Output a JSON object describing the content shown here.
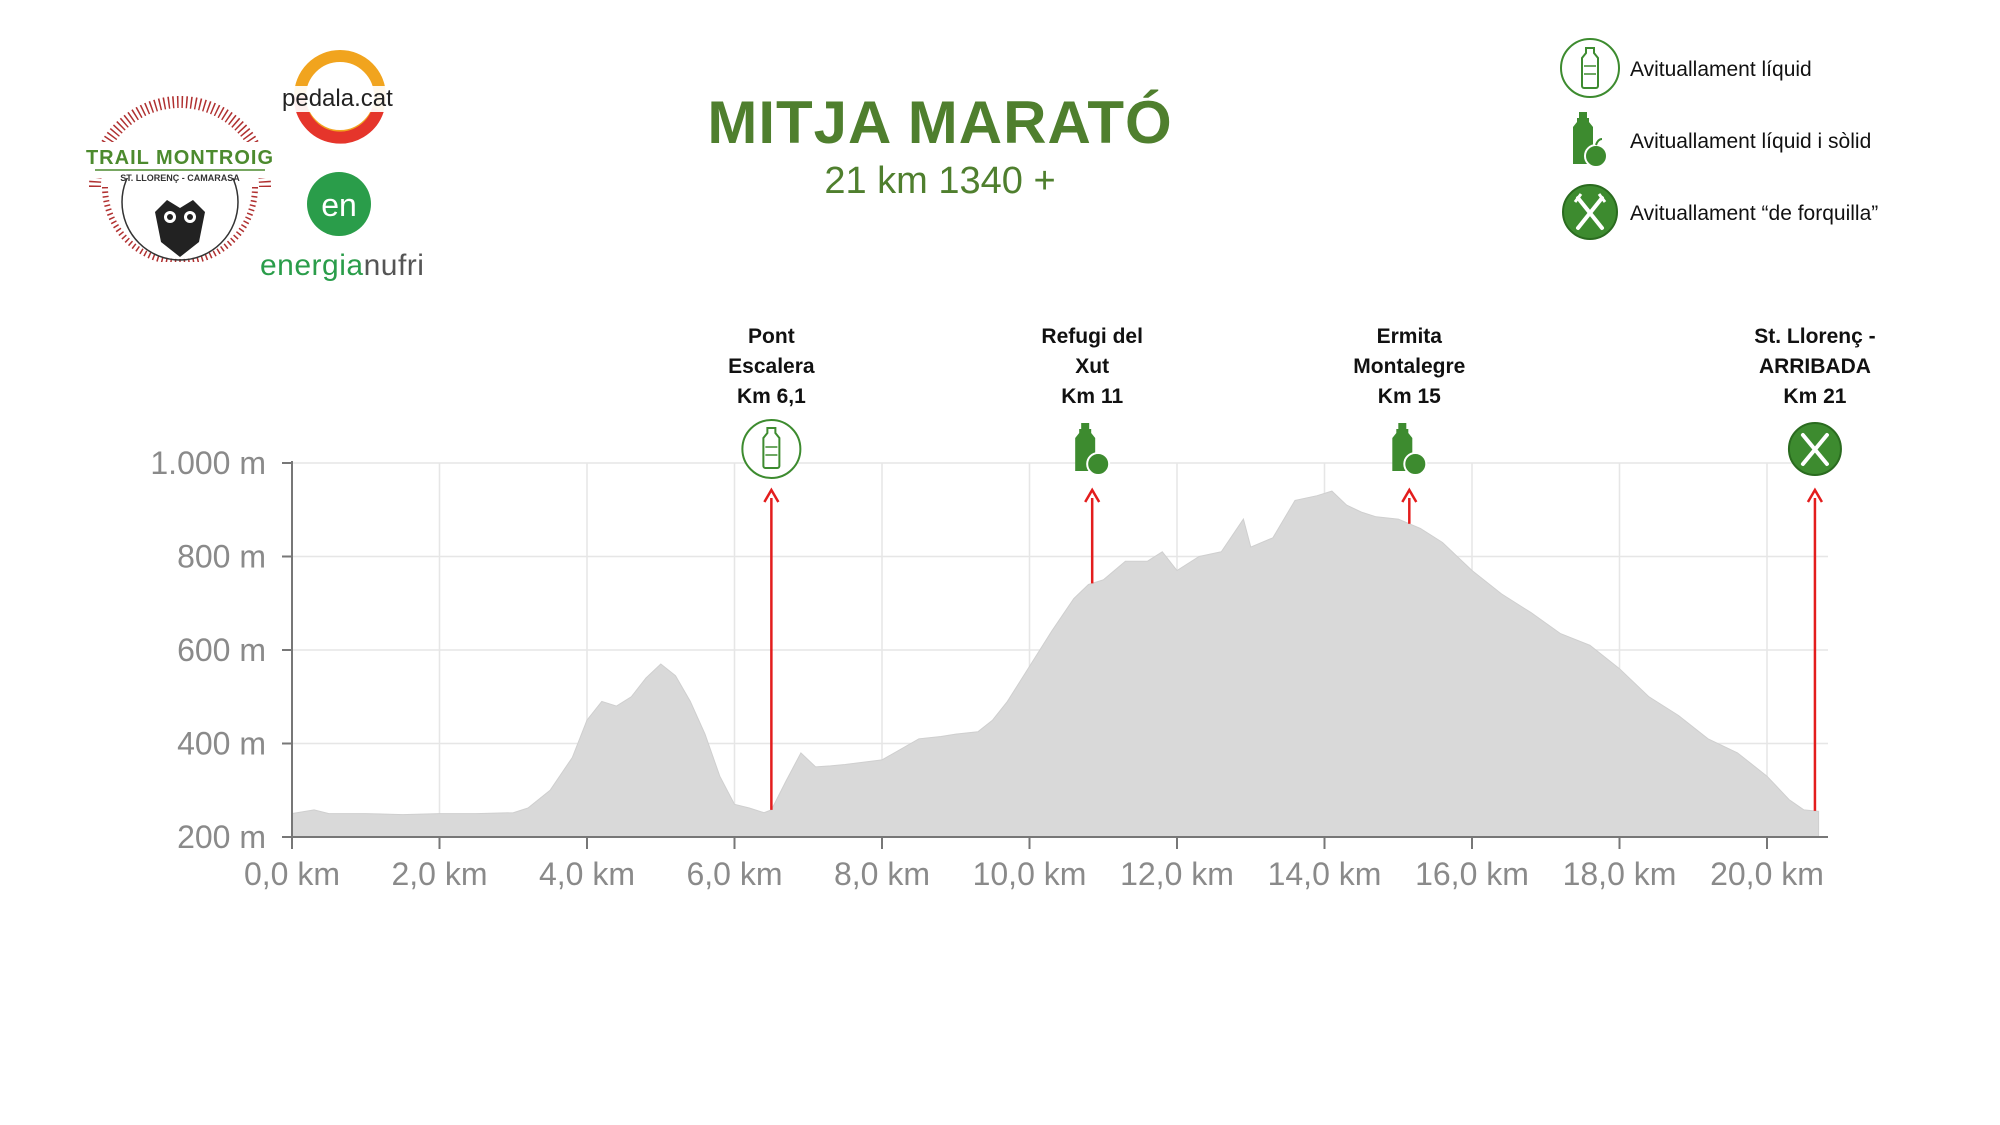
{
  "header": {
    "title": "MITJA MARATÓ",
    "subtitle": "21 km 1340 +"
  },
  "logos": {
    "trail": {
      "line1": "TRAIL MONTROIG",
      "line2": "ST. LLORENÇ - CAMARASA"
    },
    "pedala": {
      "text": "pedala.cat"
    },
    "energia": {
      "mark": "en",
      "text_a": "energia",
      "text_b": "nufri"
    }
  },
  "legend": [
    {
      "icon": "water-bottle-icon",
      "label": "Avituallament líquid"
    },
    {
      "icon": "bottle-apple-icon",
      "label": "Avituallament líquid i sòlid"
    },
    {
      "icon": "fork-knife-icon",
      "label": "Avituallament “de forquilla”"
    }
  ],
  "colors": {
    "accent": "#4f7f2e",
    "icon_green": "#3d8b2f",
    "profile_fill": "#d9d9d9",
    "arrow": "#e31d1d",
    "grid": "#e6e6e6",
    "tick": "#8a8a8a"
  },
  "chart_data": {
    "type": "area",
    "title": "MITJA MARATÓ",
    "subtitle": "21 km 1340 +",
    "xlabel": "",
    "ylabel": "",
    "xlim": [
      0,
      20.8
    ],
    "ylim": [
      200,
      1000
    ],
    "grid": true,
    "x_ticks": [
      "0,0 km",
      "2,0 km",
      "4,0 km",
      "6,0 km",
      "8,0 km",
      "10,0 km",
      "12,0 km",
      "14,0 km",
      "16,0 km",
      "18,0 km",
      "20,0 km"
    ],
    "y_ticks": [
      "200 m",
      "400 m",
      "600 m",
      "800 m",
      "1.000 m"
    ],
    "x_tick_values": [
      0,
      2,
      4,
      6,
      8,
      10,
      12,
      14,
      16,
      18,
      20
    ],
    "y_tick_values": [
      200,
      400,
      600,
      800,
      1000
    ],
    "series": [
      {
        "x": [
          0,
          0.3,
          0.5,
          1.0,
          1.5,
          2.0,
          2.5,
          3.0,
          3.2,
          3.5,
          3.8,
          4.0,
          4.2,
          4.4,
          4.6,
          4.8,
          5.0,
          5.2,
          5.4,
          5.6,
          5.8,
          6.0,
          6.2,
          6.4,
          6.5,
          6.7,
          6.9,
          7.1,
          7.3,
          7.5,
          8.0,
          8.5,
          8.8,
          9.0,
          9.3,
          9.5,
          9.7,
          10.0,
          10.3,
          10.6,
          10.8,
          11.0,
          11.3,
          11.6,
          11.8,
          12.0,
          12.3,
          12.6,
          12.9,
          13.0,
          13.3,
          13.6,
          13.9,
          14.1,
          14.3,
          14.5,
          14.7,
          15.0,
          15.3,
          15.6,
          16.0,
          16.4,
          16.8,
          17.2,
          17.6,
          18.0,
          18.4,
          18.8,
          19.2,
          19.6,
          20.0,
          20.3,
          20.5,
          20.7
        ],
        "values": [
          250,
          258,
          250,
          250,
          248,
          250,
          250,
          252,
          262,
          300,
          370,
          450,
          490,
          480,
          500,
          540,
          570,
          545,
          490,
          420,
          330,
          270,
          262,
          252,
          258,
          320,
          380,
          350,
          352,
          355,
          365,
          410,
          415,
          420,
          425,
          450,
          490,
          565,
          640,
          710,
          740,
          750,
          790,
          790,
          810,
          770,
          800,
          810,
          880,
          820,
          840,
          920,
          930,
          940,
          910,
          895,
          885,
          880,
          860,
          830,
          770,
          720,
          680,
          635,
          610,
          560,
          500,
          460,
          410,
          380,
          330,
          280,
          258,
          255
        ]
      }
    ],
    "annotations": [
      {
        "x": 6.5,
        "lines": [
          "Pont",
          "Escalera",
          "Km 6,1"
        ],
        "icon": "water-bottle-icon"
      },
      {
        "x": 10.85,
        "lines": [
          "Refugi del",
          "Xut",
          "Km 11"
        ],
        "icon": "bottle-apple-icon"
      },
      {
        "x": 15.15,
        "lines": [
          "Ermita",
          "Montalegre",
          "Km 15"
        ],
        "icon": "bottle-apple-icon"
      },
      {
        "x": 20.65,
        "lines": [
          "St. Llorenç -",
          "ARRIBADA",
          "Km 21"
        ],
        "icon": "fork-knife-icon"
      }
    ]
  }
}
